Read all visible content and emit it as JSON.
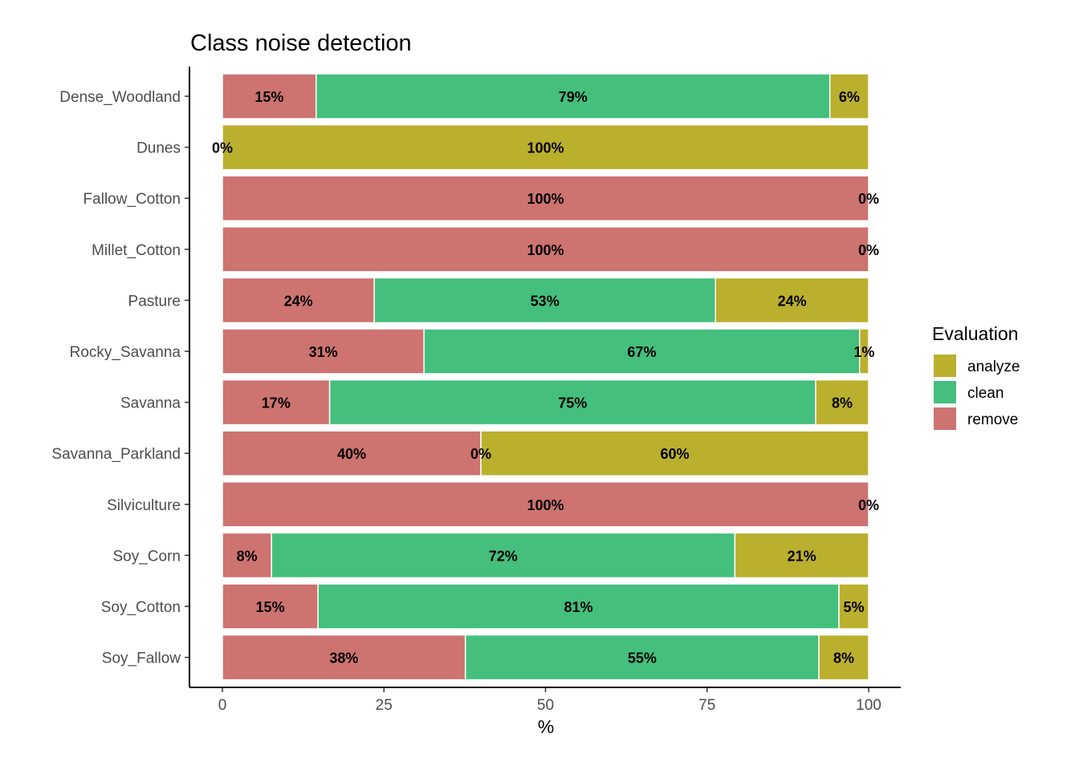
{
  "chart_data": {
    "type": "bar",
    "orientation": "horizontal",
    "stacked": true,
    "title": "Class noise detection",
    "xlabel": "%",
    "ylabel": "",
    "xlim": [
      0,
      100
    ],
    "xticks": [
      0,
      25,
      50,
      75,
      100
    ],
    "xtick_labels": [
      "0",
      "25",
      "50",
      "75",
      "100"
    ],
    "grid": false,
    "legend": {
      "title": "Evaluation",
      "position": "right",
      "entries": [
        "analyze",
        "clean",
        "remove"
      ]
    },
    "colors": {
      "remove": "#CD7370",
      "clean": "#44BF7D",
      "analyze": "#BBAF2E"
    },
    "categories": [
      "Dense_Woodland",
      "Dunes",
      "Fallow_Cotton",
      "Millet_Cotton",
      "Pasture",
      "Rocky_Savanna",
      "Savanna",
      "Savanna_Parkland",
      "Silviculture",
      "Soy_Corn",
      "Soy_Cotton",
      "Soy_Fallow"
    ],
    "series": [
      {
        "name": "remove",
        "values": [
          14.5,
          0,
          100,
          100,
          23.5,
          31.2,
          16.6,
          40,
          100,
          7.6,
          14.8,
          37.6
        ],
        "labels": [
          "15%",
          "0%",
          "100%",
          "100%",
          "24%",
          "31%",
          "17%",
          "40%",
          "100%",
          "8%",
          "15%",
          "38%"
        ]
      },
      {
        "name": "clean",
        "values": [
          79.5,
          0,
          0,
          0,
          52.8,
          67.4,
          75.2,
          0,
          0,
          71.7,
          80.6,
          54.7
        ],
        "labels": [
          "79%",
          "",
          "",
          "",
          "53%",
          "67%",
          "75%",
          "0%",
          "",
          "72%",
          "81%",
          "55%"
        ]
      },
      {
        "name": "analyze",
        "values": [
          6.0,
          100,
          0,
          0,
          23.7,
          1.4,
          8.2,
          60,
          0,
          20.7,
          4.6,
          7.7
        ],
        "labels": [
          "6%",
          "100%",
          "0%",
          "0%",
          "24%",
          "1%",
          "8%",
          "60%",
          "0%",
          "21%",
          "5%",
          "8%"
        ]
      }
    ]
  }
}
